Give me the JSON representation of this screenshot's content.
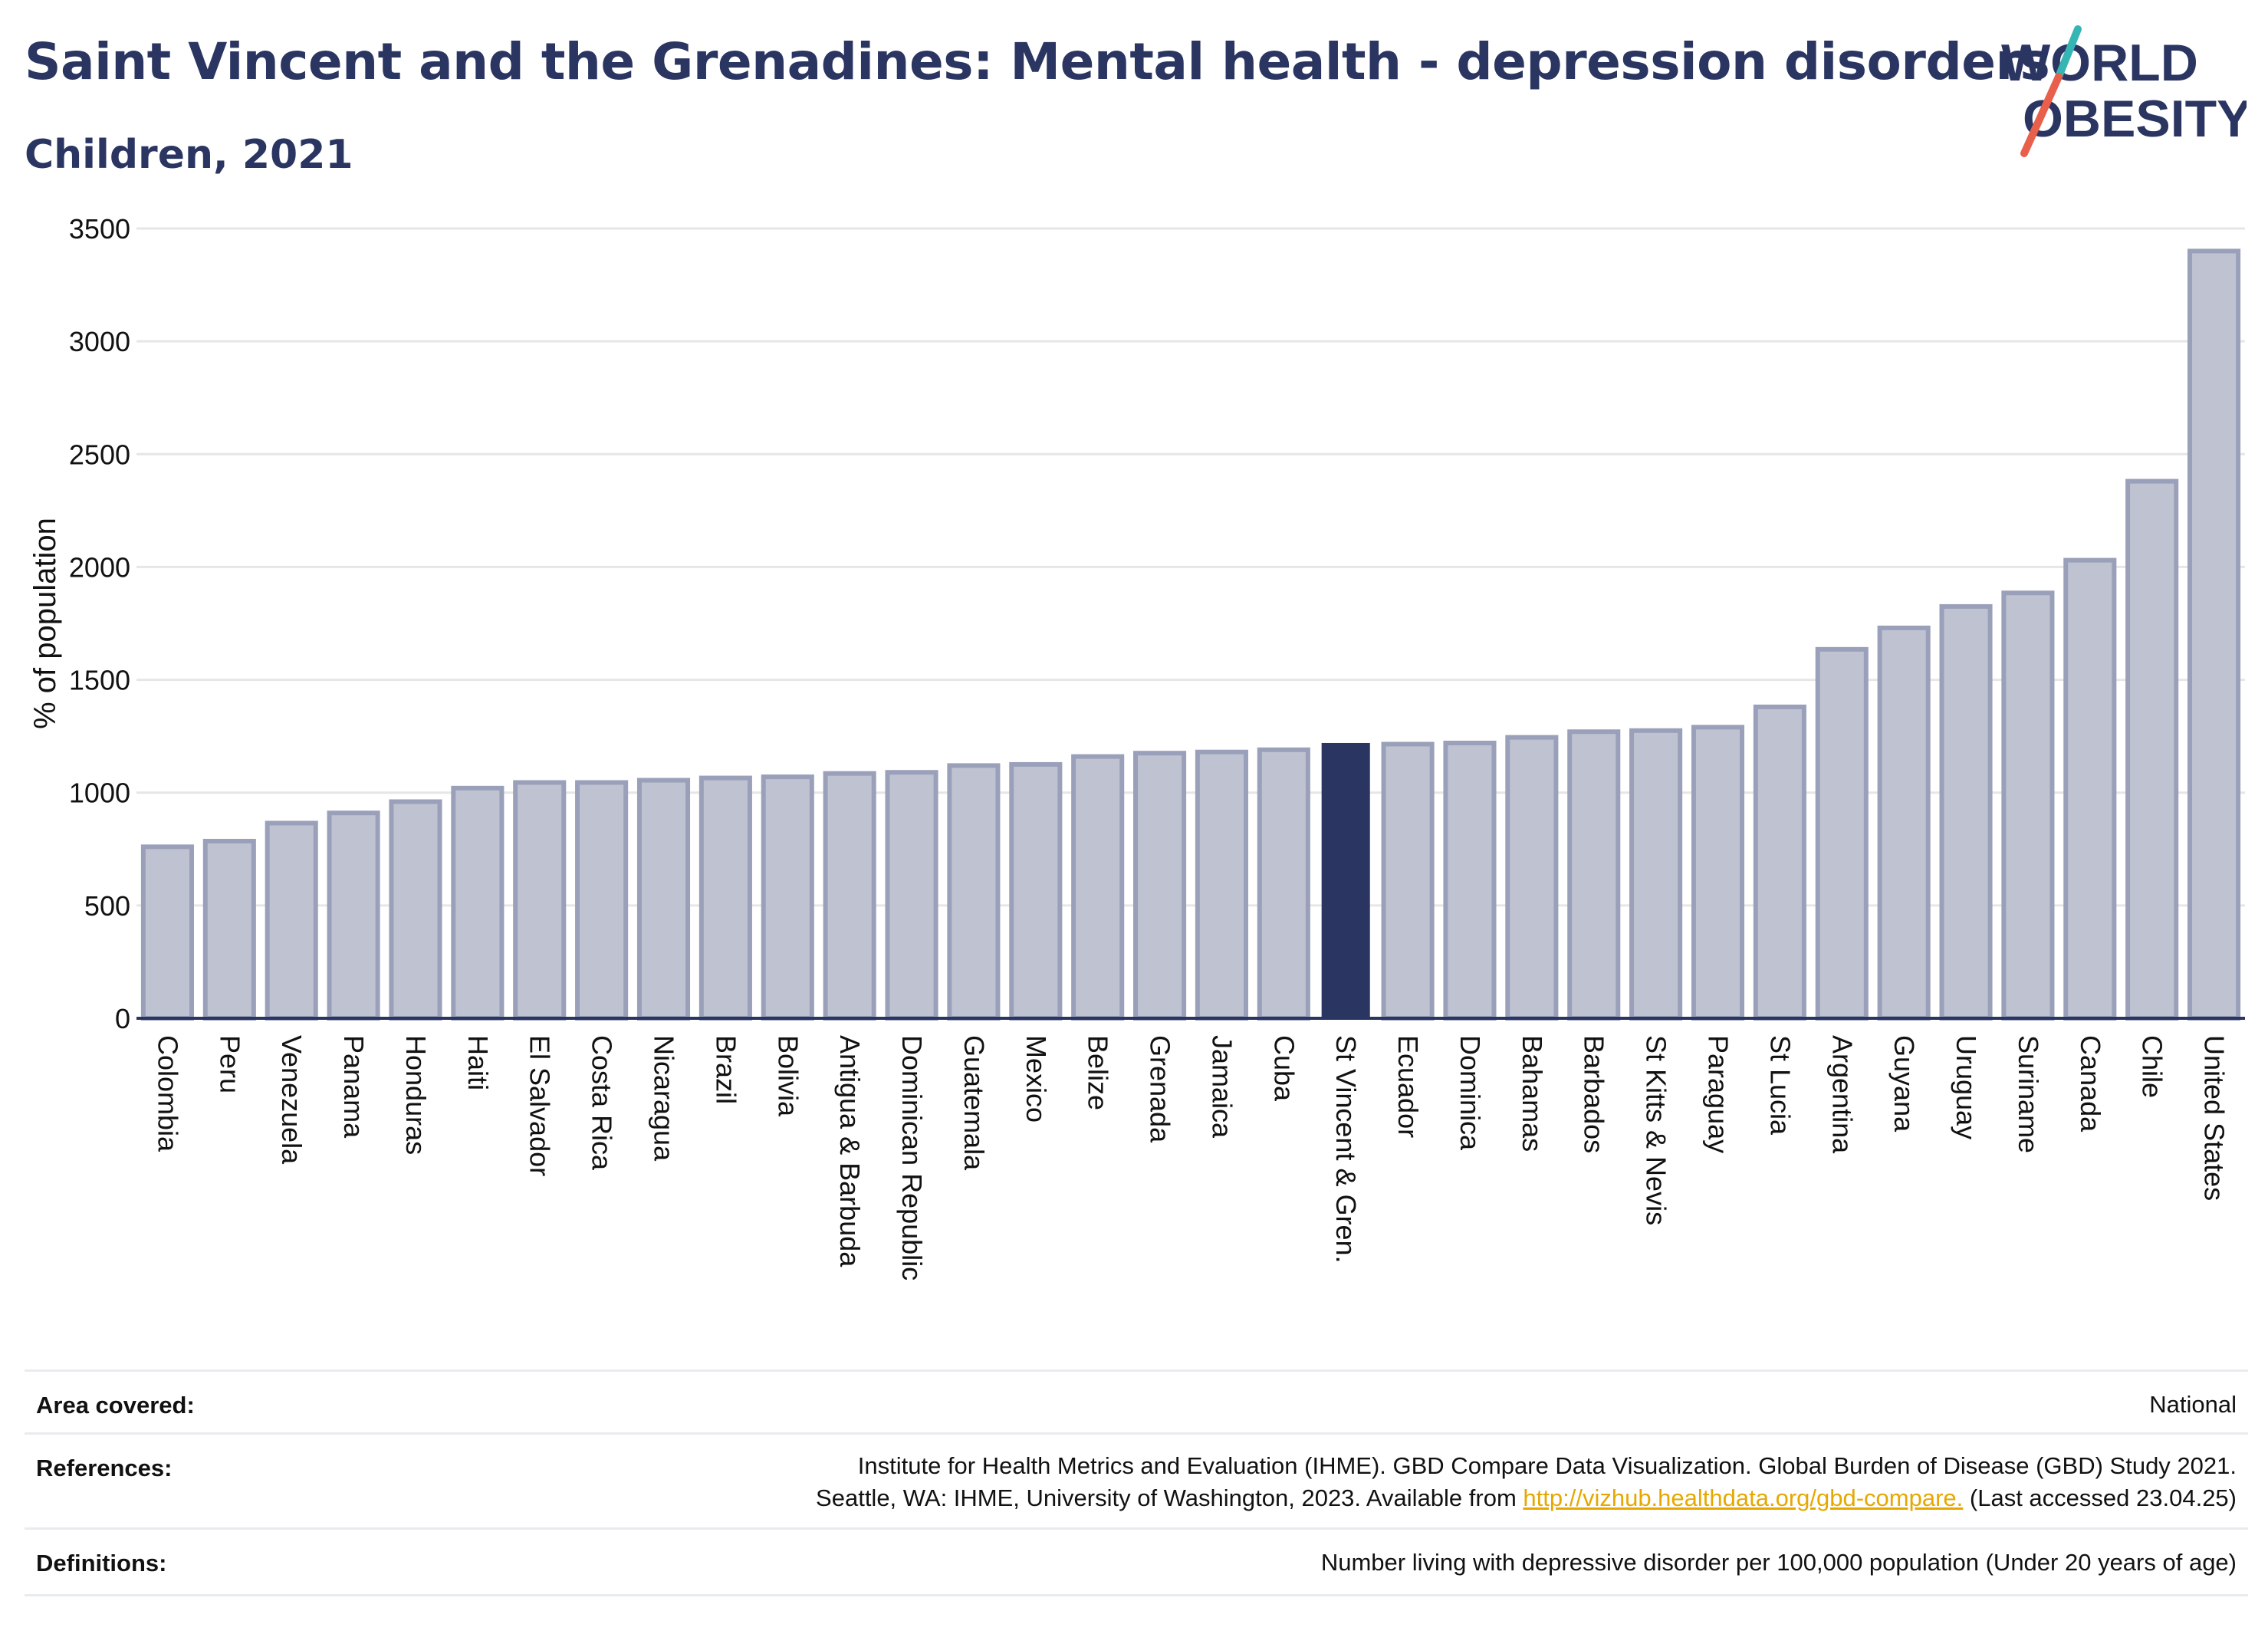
{
  "title": "Saint Vincent and the Grenadines: Mental health - depression disorders",
  "subtitle": "Children, 2021",
  "logo": {
    "line1": "WORLD",
    "line2": "OBESITY",
    "accent_teal": "#35b6b4",
    "accent_red": "#e8604c"
  },
  "colors": {
    "bar": "#bfc3d1",
    "bar_border": "#9aa0b9",
    "highlight": "#2b3561",
    "grid": "#e6e6e6",
    "text": "#2b3561"
  },
  "chart_data": {
    "type": "bar",
    "ylabel": "% of population",
    "ylim": [
      0,
      3500
    ],
    "yticks": [
      0,
      500,
      1000,
      1500,
      2000,
      2500,
      3000,
      3500
    ],
    "highlight": "St Vincent & Gren.",
    "categories": [
      "Colombia",
      "Peru",
      "Venezuela",
      "Panama",
      "Honduras",
      "Haiti",
      "El Salvador",
      "Costa Rica",
      "Nicaragua",
      "Brazil",
      "Bolivia",
      "Antigua & Barbuda",
      "Dominican Republic",
      "Guatemala",
      "Mexico",
      "Belize",
      "Grenada",
      "Jamaica",
      "Cuba",
      "St Vincent & Gren.",
      "Ecuador",
      "Dominica",
      "Bahamas",
      "Barbados",
      "St Kitts & Nevis",
      "Paraguay",
      "St Lucia",
      "Argentina",
      "Guyana",
      "Uruguay",
      "Suriname",
      "Canada",
      "Chile",
      "United States"
    ],
    "values": [
      760,
      785,
      865,
      910,
      960,
      1020,
      1045,
      1045,
      1055,
      1065,
      1070,
      1085,
      1090,
      1120,
      1125,
      1160,
      1175,
      1180,
      1190,
      1220,
      1215,
      1220,
      1245,
      1270,
      1275,
      1290,
      1380,
      1635,
      1730,
      1825,
      1885,
      2030,
      2380,
      3400
    ]
  },
  "footer": {
    "area_label": "Area covered:",
    "area_value": "National",
    "ref_label": "References:",
    "ref_line1": "Institute for Health Metrics and Evaluation (IHME). GBD Compare Data Visualization. Global Burden of Disease (GBD) Study 2021.",
    "ref_line2_pre": "Seattle, WA: IHME, University of Washington, 2023. Available from ",
    "ref_link": "http://vizhub.healthdata.org/gbd-compare.",
    "ref_line2_post": " (Last accessed 23.04.25)",
    "def_label": "Definitions:",
    "def_value": "Number living with depressive disorder per 100,000 population (Under 20 years of age)"
  }
}
